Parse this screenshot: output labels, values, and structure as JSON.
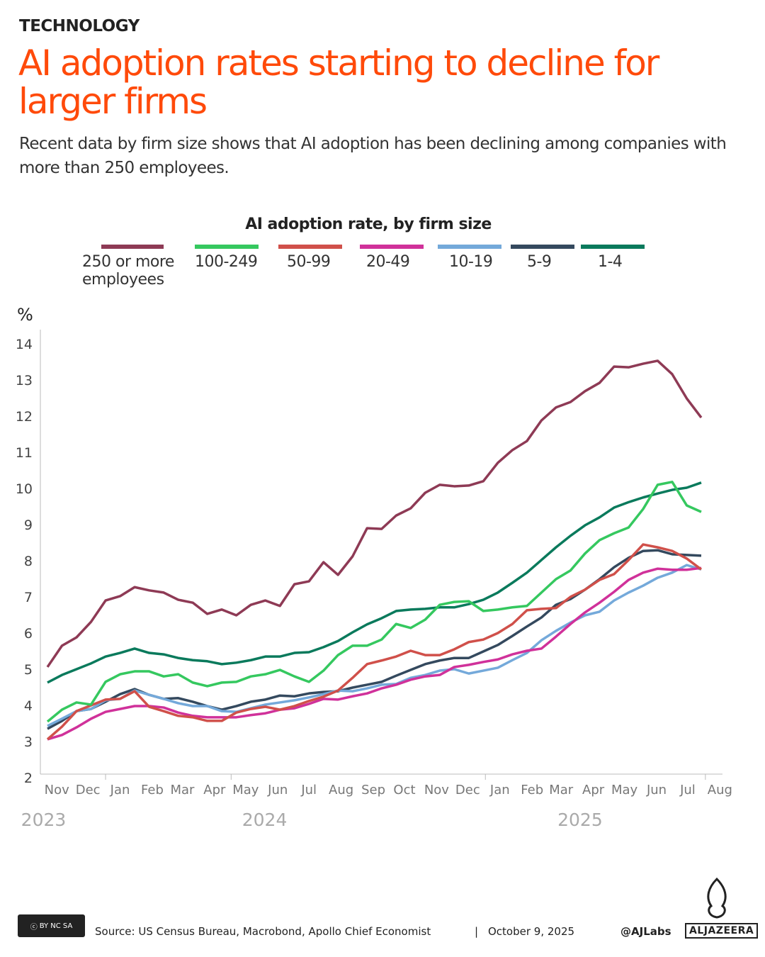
{
  "header": {
    "kicker": "TECHNOLOGY",
    "title": "AI adoption rates starting to decline for larger firms",
    "subtitle": "Recent data by firm size shows that AI adoption has been declining among companies with more than 250 employees."
  },
  "chart_data": {
    "type": "line",
    "title": "AI adoption rate, by firm size",
    "ylabel": "%",
    "ylim": [
      2,
      14
    ],
    "yticks": [
      2,
      3,
      4,
      5,
      6,
      7,
      8,
      9,
      10,
      11,
      12,
      13,
      14
    ],
    "grid": false,
    "legend_placement": "top",
    "x_month_labels": [
      {
        "label": "Nov",
        "date": "2023-11-15"
      },
      {
        "label": "Dec",
        "date": "2023-12-15"
      },
      {
        "label": "Jan",
        "date": "2024-01-15"
      },
      {
        "label": "Feb",
        "date": "2024-02-15"
      },
      {
        "label": "Mar",
        "date": "2024-03-15"
      },
      {
        "label": "Apr",
        "date": "2024-04-15"
      },
      {
        "label": "May",
        "date": "2024-05-15"
      },
      {
        "label": "Jun",
        "date": "2024-06-15"
      },
      {
        "label": "Jul",
        "date": "2024-07-15"
      },
      {
        "label": "Aug",
        "date": "2024-08-15"
      },
      {
        "label": "Sep",
        "date": "2024-09-15"
      },
      {
        "label": "Oct",
        "date": "2024-10-15"
      },
      {
        "label": "Nov",
        "date": "2024-11-15"
      },
      {
        "label": "Dec",
        "date": "2024-12-15"
      },
      {
        "label": "Jan",
        "date": "2025-01-15"
      },
      {
        "label": "Feb",
        "date": "2025-02-15"
      },
      {
        "label": "Mar",
        "date": "2025-03-15"
      },
      {
        "label": "Apr",
        "date": "2025-04-15"
      },
      {
        "label": "May",
        "date": "2025-05-15"
      },
      {
        "label": "Jun",
        "date": "2025-06-15"
      },
      {
        "label": "Jul",
        "date": "2025-07-15"
      },
      {
        "label": "Aug",
        "date": "2025-08-15"
      }
    ],
    "x_year_labels": [
      {
        "label": "2023",
        "date": "2023-11-01"
      },
      {
        "label": "2024",
        "date": "2024-06-01"
      },
      {
        "label": "2025",
        "date": "2025-04-01"
      }
    ],
    "x": [
      "2023-11-06",
      "2023-11-20",
      "2023-12-04",
      "2023-12-18",
      "2024-01-01",
      "2024-01-15",
      "2024-01-29",
      "2024-02-12",
      "2024-02-26",
      "2024-03-11",
      "2024-03-25",
      "2024-04-08",
      "2024-04-22",
      "2024-05-06",
      "2024-05-20",
      "2024-06-03",
      "2024-06-17",
      "2024-07-01",
      "2024-07-15",
      "2024-07-29",
      "2024-08-12",
      "2024-08-26",
      "2024-09-09",
      "2024-09-23",
      "2024-10-07",
      "2024-10-21",
      "2024-11-04",
      "2024-11-18",
      "2024-12-02",
      "2024-12-16",
      "2024-12-30",
      "2025-01-13",
      "2025-01-27",
      "2025-02-10",
      "2025-02-24",
      "2025-03-10",
      "2025-03-24",
      "2025-04-07",
      "2025-04-21",
      "2025-05-05",
      "2025-05-19",
      "2025-06-02",
      "2025-06-16",
      "2025-06-30",
      "2025-07-14",
      "2025-07-28"
    ],
    "series": [
      {
        "name": "250 or more employees",
        "color": "#8e3a55",
        "values": [
          5.06,
          5.65,
          5.88,
          6.31,
          6.9,
          7.02,
          7.27,
          7.18,
          7.12,
          6.92,
          6.84,
          6.53,
          6.65,
          6.49,
          6.78,
          6.9,
          6.75,
          7.35,
          7.43,
          7.96,
          7.61,
          8.12,
          8.9,
          8.88,
          9.25,
          9.45,
          9.88,
          10.1,
          10.06,
          10.08,
          10.2,
          10.71,
          11.06,
          11.31,
          11.88,
          12.24,
          12.39,
          12.69,
          12.92,
          13.37,
          13.35,
          13.45,
          13.53,
          13.16,
          12.49,
          11.96
        ]
      },
      {
        "name": "100-249",
        "color": "#35c85f",
        "values": [
          3.55,
          3.88,
          4.08,
          4.02,
          4.65,
          4.86,
          4.94,
          4.94,
          4.8,
          4.86,
          4.63,
          4.53,
          4.63,
          4.65,
          4.8,
          4.86,
          4.98,
          4.8,
          4.65,
          4.96,
          5.39,
          5.65,
          5.65,
          5.82,
          6.25,
          6.14,
          6.37,
          6.78,
          6.86,
          6.88,
          6.61,
          6.65,
          6.71,
          6.75,
          7.12,
          7.49,
          7.73,
          8.2,
          8.57,
          8.76,
          8.92,
          9.43,
          10.1,
          10.18,
          9.53,
          9.35
        ]
      },
      {
        "name": "50-99",
        "color": "#d0504a",
        "values": [
          3.06,
          3.41,
          3.84,
          4.0,
          4.16,
          4.18,
          4.39,
          3.96,
          3.84,
          3.71,
          3.67,
          3.57,
          3.57,
          3.8,
          3.9,
          3.96,
          3.88,
          3.98,
          4.12,
          4.24,
          4.41,
          4.76,
          5.14,
          5.24,
          5.35,
          5.51,
          5.39,
          5.39,
          5.55,
          5.75,
          5.82,
          6.0,
          6.25,
          6.63,
          6.67,
          6.69,
          7.0,
          7.2,
          7.47,
          7.63,
          8.02,
          8.45,
          8.37,
          8.27,
          8.06,
          7.76
        ]
      },
      {
        "name": "20-49",
        "color": "#d0319a",
        "values": [
          3.06,
          3.18,
          3.39,
          3.63,
          3.82,
          3.9,
          3.98,
          3.98,
          3.94,
          3.8,
          3.71,
          3.67,
          3.67,
          3.67,
          3.73,
          3.78,
          3.88,
          3.92,
          4.04,
          4.18,
          4.16,
          4.25,
          4.33,
          4.47,
          4.57,
          4.71,
          4.8,
          4.84,
          5.06,
          5.12,
          5.2,
          5.27,
          5.41,
          5.51,
          5.57,
          5.9,
          6.25,
          6.57,
          6.84,
          7.14,
          7.47,
          7.67,
          7.78,
          7.75,
          7.75,
          7.8
        ]
      },
      {
        "name": "10-19",
        "color": "#74a9da",
        "values": [
          3.43,
          3.63,
          3.84,
          3.9,
          4.14,
          4.18,
          4.41,
          4.29,
          4.18,
          4.06,
          3.98,
          3.98,
          3.84,
          3.82,
          3.92,
          4.02,
          4.08,
          4.14,
          4.22,
          4.31,
          4.41,
          4.39,
          4.47,
          4.57,
          4.59,
          4.76,
          4.84,
          4.96,
          5.0,
          4.88,
          4.96,
          5.04,
          5.25,
          5.45,
          5.8,
          6.06,
          6.29,
          6.49,
          6.59,
          6.9,
          7.12,
          7.31,
          7.53,
          7.67,
          7.88,
          7.76
        ]
      },
      {
        "name": "5-9",
        "color": "#34495e",
        "values": [
          3.35,
          3.57,
          3.84,
          3.9,
          4.1,
          4.31,
          4.45,
          4.29,
          4.18,
          4.2,
          4.1,
          3.98,
          3.88,
          3.98,
          4.1,
          4.16,
          4.27,
          4.25,
          4.33,
          4.37,
          4.39,
          4.49,
          4.57,
          4.65,
          4.82,
          4.98,
          5.14,
          5.24,
          5.31,
          5.31,
          5.49,
          5.67,
          5.92,
          6.18,
          6.43,
          6.78,
          6.94,
          7.2,
          7.49,
          7.82,
          8.08,
          8.27,
          8.29,
          8.18,
          8.16,
          8.14
        ]
      },
      {
        "name": "1-4",
        "color": "#0a7a5c",
        "values": [
          4.63,
          4.84,
          5.0,
          5.16,
          5.35,
          5.45,
          5.57,
          5.45,
          5.41,
          5.31,
          5.25,
          5.22,
          5.14,
          5.18,
          5.25,
          5.35,
          5.35,
          5.45,
          5.47,
          5.61,
          5.78,
          6.02,
          6.24,
          6.41,
          6.61,
          6.65,
          6.67,
          6.71,
          6.71,
          6.8,
          6.92,
          7.12,
          7.39,
          7.67,
          8.02,
          8.37,
          8.69,
          8.98,
          9.2,
          9.47,
          9.62,
          9.75,
          9.86,
          9.96,
          10.02,
          10.16
        ]
      }
    ]
  },
  "legend_labels": [
    "250 or more employees",
    "100-249",
    "50-99",
    "20-49",
    "10-19",
    "5-9",
    "1-4"
  ],
  "footer": {
    "source": "Source:  US Census Bureau, Macrobond, Apollo Chief Economist",
    "separator": "|",
    "date": "October 9, 2025",
    "handle": "@AJLabs",
    "logo": "ALJAZEERA",
    "license": "BY NC SA"
  }
}
